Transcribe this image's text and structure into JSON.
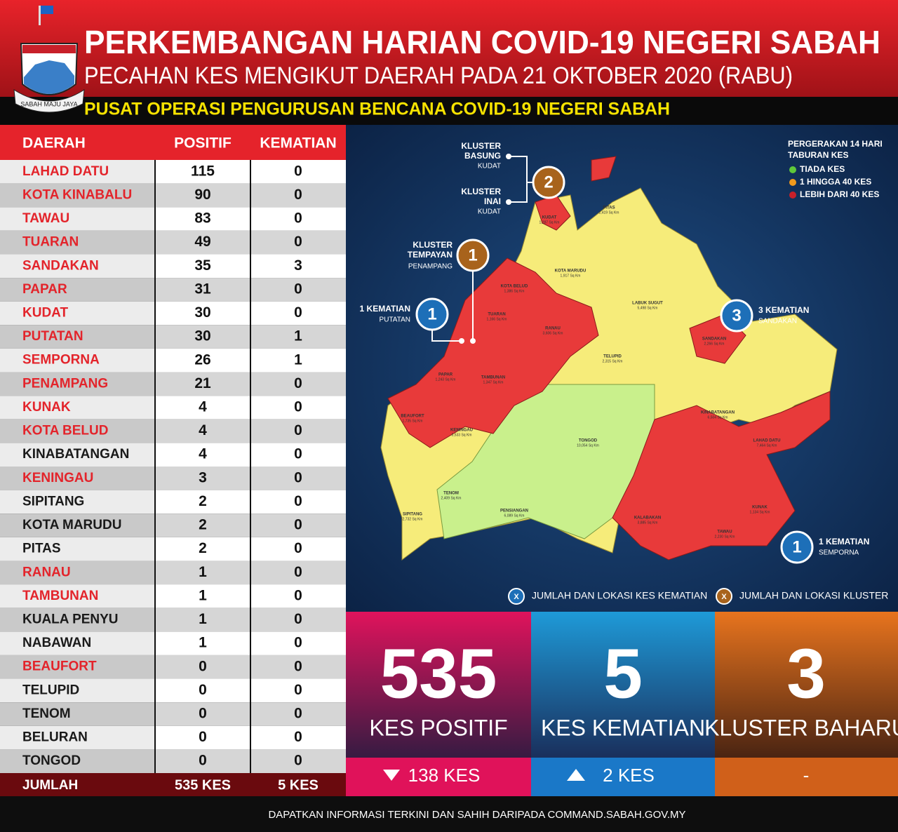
{
  "header": {
    "title": "PERKEMBANGAN HARIAN COVID-19 NEGERI SABAH",
    "subtitle": "PECAHAN KES MENGIKUT DAERAH PADA 21 OKTOBER 2020 (RABU)",
    "agency": "PUSAT OPERASI PENGURUSAN BENCANA COVID-19 NEGERI SABAH",
    "motto": "SABAH MAJU JAYA"
  },
  "table": {
    "columns": [
      "DAERAH",
      "POSITIF",
      "KEMATIAN"
    ],
    "rows": [
      {
        "district": "LAHAD DATU",
        "positive": 115,
        "deaths": 0,
        "highlight": true
      },
      {
        "district": "KOTA KINABALU",
        "positive": 90,
        "deaths": 0,
        "highlight": true
      },
      {
        "district": "TAWAU",
        "positive": 83,
        "deaths": 0,
        "highlight": true
      },
      {
        "district": "TUARAN",
        "positive": 49,
        "deaths": 0,
        "highlight": true
      },
      {
        "district": "SANDAKAN",
        "positive": 35,
        "deaths": 3,
        "highlight": true
      },
      {
        "district": "PAPAR",
        "positive": 31,
        "deaths": 0,
        "highlight": true
      },
      {
        "district": "KUDAT",
        "positive": 30,
        "deaths": 0,
        "highlight": true
      },
      {
        "district": "PUTATAN",
        "positive": 30,
        "deaths": 1,
        "highlight": true
      },
      {
        "district": "SEMPORNA",
        "positive": 26,
        "deaths": 1,
        "highlight": true
      },
      {
        "district": "PENAMPANG",
        "positive": 21,
        "deaths": 0,
        "highlight": true
      },
      {
        "district": "KUNAK",
        "positive": 4,
        "deaths": 0,
        "highlight": true
      },
      {
        "district": "KOTA BELUD",
        "positive": 4,
        "deaths": 0,
        "highlight": true
      },
      {
        "district": "KINABATANGAN",
        "positive": 4,
        "deaths": 0,
        "highlight": false
      },
      {
        "district": "KENINGAU",
        "positive": 3,
        "deaths": 0,
        "highlight": true
      },
      {
        "district": "SIPITANG",
        "positive": 2,
        "deaths": 0,
        "highlight": false
      },
      {
        "district": "KOTA MARUDU",
        "positive": 2,
        "deaths": 0,
        "highlight": false
      },
      {
        "district": "PITAS",
        "positive": 2,
        "deaths": 0,
        "highlight": false
      },
      {
        "district": "RANAU",
        "positive": 1,
        "deaths": 0,
        "highlight": true
      },
      {
        "district": "TAMBUNAN",
        "positive": 1,
        "deaths": 0,
        "highlight": true
      },
      {
        "district": "KUALA PENYU",
        "positive": 1,
        "deaths": 0,
        "highlight": false
      },
      {
        "district": "NABAWAN",
        "positive": 1,
        "deaths": 0,
        "highlight": false
      },
      {
        "district": "BEAUFORT",
        "positive": 0,
        "deaths": 0,
        "highlight": true
      },
      {
        "district": "TELUPID",
        "positive": 0,
        "deaths": 0,
        "highlight": false
      },
      {
        "district": "TENOM",
        "positive": 0,
        "deaths": 0,
        "highlight": false
      },
      {
        "district": "BELURAN",
        "positive": 0,
        "deaths": 0,
        "highlight": false
      },
      {
        "district": "TONGOD",
        "positive": 0,
        "deaths": 0,
        "highlight": false
      }
    ],
    "total": {
      "label": "JUMLAH",
      "positive": "535 KES",
      "deaths": "5 KES"
    }
  },
  "map": {
    "legend": {
      "title": [
        "PERGERAKAN 14 HARI",
        "TABURAN KES"
      ],
      "items": [
        {
          "label": "TIADA KES",
          "color": "#5fc83a"
        },
        {
          "label": "1 HINGGA 40 KES",
          "color": "#f29a1c"
        },
        {
          "label": "LEBIH DARI 40 KES",
          "color": "#c8202a"
        }
      ]
    },
    "districts": [
      {
        "name": "KUDAT",
        "area": "1,287 Sq Km"
      },
      {
        "name": "PITAS",
        "area": "1,419 Sq Km"
      },
      {
        "name": "KOTA MARUDU",
        "area": "1,917 Sq Km"
      },
      {
        "name": "KOTA BELUD",
        "area": "1,386 Sq Km"
      },
      {
        "name": "TUARAN",
        "area": "1,166 Sq Km"
      },
      {
        "name": "RANAU",
        "area": "3,606 Sq Km"
      },
      {
        "name": "LABUK SUGUT",
        "area": "5,498 Sq Km"
      },
      {
        "name": "TELUPID",
        "area": "2,315 Sq Km"
      },
      {
        "name": "SANDAKAN",
        "area": "2,266 Sq Km"
      },
      {
        "name": "KINABATANGAN",
        "area": "6,504 Sq Km"
      },
      {
        "name": "LAHAD DATU",
        "area": "7,464 Sq Km"
      },
      {
        "name": "KUNAK",
        "area": "1,134 Sq Km"
      },
      {
        "name": "TAWAU",
        "area": "2,230 Sq Km"
      },
      {
        "name": "KALABAKAN",
        "area": "3,885 Sq Km"
      },
      {
        "name": "TONGOD",
        "area": "10,054 Sq Km"
      },
      {
        "name": "PENSIANGAN",
        "area": "6,089 Sq Km"
      },
      {
        "name": "KENINGAU",
        "area": "3,533 Sq Km"
      },
      {
        "name": "TENOM",
        "area": "2,409 Sq Km"
      },
      {
        "name": "SIPITANG",
        "area": "2,732 Sq Km"
      },
      {
        "name": "BEAUFORT",
        "area": "1,735 Sq Km"
      },
      {
        "name": "PAPAR",
        "area": "1,243 Sq Km"
      },
      {
        "name": "TAMBUNAN",
        "area": "1,347 Sq Km"
      }
    ],
    "cluster_markers": [
      {
        "count": 2,
        "clusters": [
          {
            "lines": [
              "KLUSTER",
              "BASUNG"
            ],
            "location": "KUDAT"
          },
          {
            "lines": [
              "KLUSTER",
              "INAI"
            ],
            "location": "KUDAT"
          }
        ]
      },
      {
        "count": 1,
        "clusters": [
          {
            "lines": [
              "KLUSTER",
              "TEMPAYAN"
            ],
            "location": "PENAMPANG"
          }
        ]
      }
    ],
    "death_markers": [
      {
        "count": 1,
        "label": "1 KEMATIAN",
        "location": "PUTATAN"
      },
      {
        "count": 3,
        "label": "3 KEMATIAN",
        "location": "SANDAKAN"
      },
      {
        "count": 1,
        "label": "1 KEMATIAN",
        "location": "SEMPORNA"
      }
    ],
    "key": [
      {
        "symbol": "X",
        "label": "JUMLAH DAN LOKASI KES KEMATIAN"
      },
      {
        "symbol": "X",
        "label": "JUMLAH DAN LOKASI KLUSTER"
      }
    ]
  },
  "summary": [
    {
      "value": 535,
      "label": "KES POSITIF",
      "change": "138 KES"
    },
    {
      "value": 5,
      "label": "KES KEMATIAN",
      "change": "2 KES"
    },
    {
      "value": 3,
      "label": "KLUSTER BAHARU",
      "change": "-"
    }
  ],
  "footer": "DAPATKAN INFORMASI TERKINI DAN SAHIH DARIPADA COMMAND.SABAH.GOV.MY"
}
